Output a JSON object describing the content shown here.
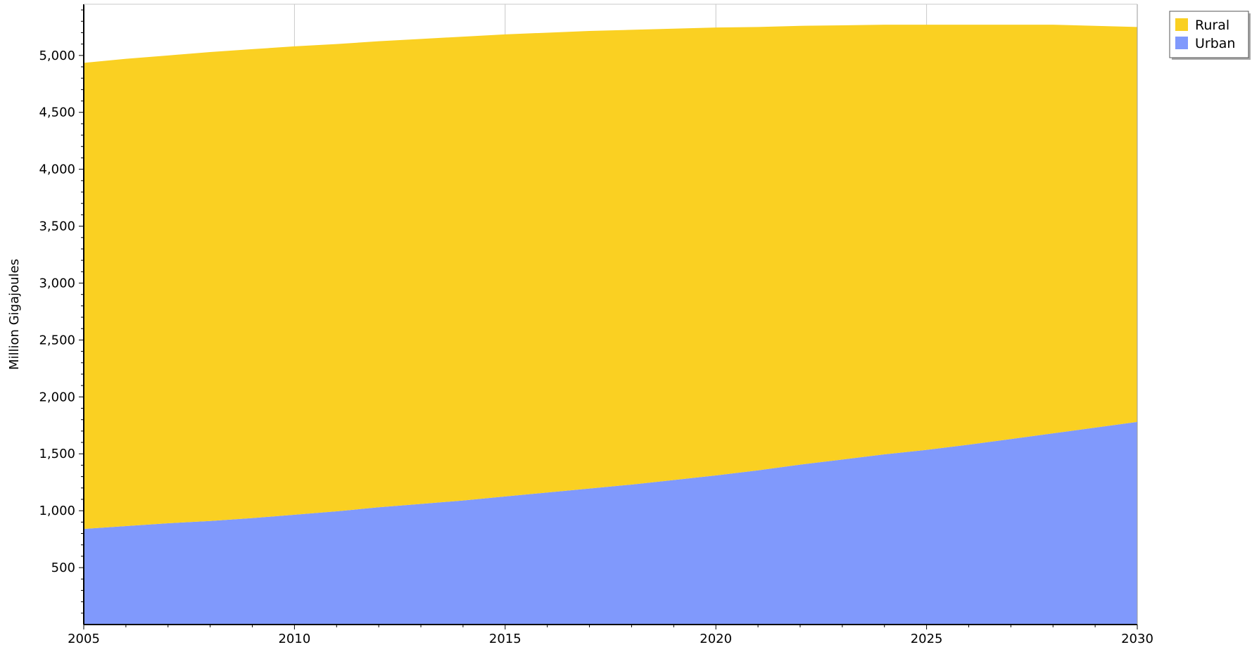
{
  "chart_data": {
    "type": "area",
    "stacked": true,
    "title": "",
    "xlabel": "",
    "ylabel": "Million Gigajoules",
    "x": [
      2005,
      2006,
      2007,
      2008,
      2009,
      2010,
      2011,
      2012,
      2013,
      2014,
      2015,
      2016,
      2017,
      2018,
      2019,
      2020,
      2021,
      2022,
      2023,
      2024,
      2025,
      2026,
      2027,
      2028,
      2029,
      2030
    ],
    "xlim": [
      2005,
      2030
    ],
    "ylim": [
      0,
      5450
    ],
    "x_ticks": [
      "2005",
      "2010",
      "2015",
      "2020",
      "2025",
      "2030"
    ],
    "y_ticks": [
      "500",
      "1,000",
      "1,500",
      "2,000",
      "2,500",
      "3,000",
      "3,500",
      "4,000",
      "4,500",
      "5,000"
    ],
    "grid": "vertical",
    "legend_position": "top-right",
    "series": [
      {
        "name": "Urban",
        "color": "#8099fc",
        "values": [
          840,
          865,
          890,
          910,
          935,
          965,
          995,
          1030,
          1060,
          1090,
          1125,
          1160,
          1195,
          1230,
          1270,
          1310,
          1355,
          1405,
          1450,
          1495,
          1535,
          1580,
          1630,
          1680,
          1730,
          1780
        ]
      },
      {
        "name": "Rural",
        "color": "#fad022",
        "values": [
          4095,
          4105,
          4110,
          4120,
          4120,
          4115,
          4105,
          4095,
          4085,
          4075,
          4060,
          4040,
          4020,
          3995,
          3965,
          3935,
          3895,
          3855,
          3815,
          3775,
          3735,
          3690,
          3640,
          3590,
          3530,
          3470
        ]
      }
    ]
  }
}
